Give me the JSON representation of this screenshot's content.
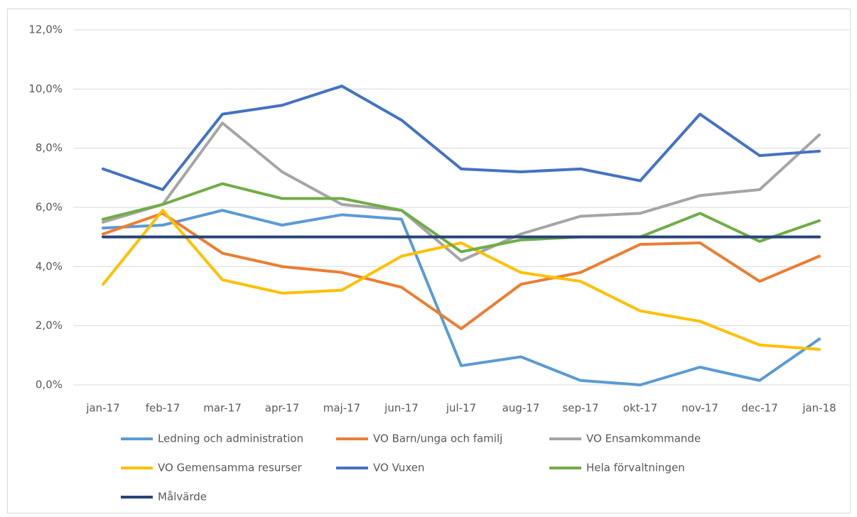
{
  "chart_data": {
    "type": "line",
    "categories": [
      "jan-17",
      "feb-17",
      "mar-17",
      "apr-17",
      "maj-17",
      "jun-17",
      "jul-17",
      "aug-17",
      "sep-17",
      "okt-17",
      "nov-17",
      "dec-17",
      "jan-18"
    ],
    "series": [
      {
        "name": "Ledning och administration",
        "color": "#5b9bd5",
        "values": [
          5.3,
          5.4,
          5.9,
          5.4,
          5.75,
          5.6,
          0.65,
          0.95,
          0.15,
          0.0,
          0.6,
          0.15,
          1.55
        ]
      },
      {
        "name": "VO Barn/unga och familj",
        "color": "#ed7d31",
        "values": [
          5.1,
          5.8,
          4.45,
          4.0,
          3.8,
          3.3,
          1.9,
          3.4,
          3.8,
          4.75,
          4.8,
          3.5,
          4.35
        ]
      },
      {
        "name": "VO Ensamkommande",
        "color": "#a5a5a5",
        "values": [
          5.5,
          6.1,
          8.85,
          7.2,
          6.1,
          5.9,
          4.2,
          5.1,
          5.7,
          5.8,
          6.4,
          6.6,
          8.45
        ]
      },
      {
        "name": "VO Gemensamma resurser",
        "color": "#ffc000",
        "values": [
          3.4,
          5.9,
          3.55,
          3.1,
          3.2,
          4.35,
          4.8,
          3.8,
          3.5,
          2.5,
          2.15,
          1.35,
          1.2
        ]
      },
      {
        "name": "VO Vuxen",
        "color": "#4472c4",
        "values": [
          7.3,
          6.6,
          9.15,
          9.45,
          10.1,
          8.95,
          7.3,
          7.2,
          7.3,
          6.9,
          9.15,
          7.75,
          7.9
        ]
      },
      {
        "name": "Hela förvaltningen",
        "color": "#70ad47",
        "values": [
          5.6,
          6.1,
          6.8,
          6.3,
          6.3,
          5.9,
          4.5,
          4.9,
          5.0,
          5.0,
          5.8,
          4.85,
          5.55
        ]
      },
      {
        "name": "Målvärde",
        "color": "#264478",
        "values": [
          5,
          5,
          5,
          5,
          5,
          5,
          5,
          5,
          5,
          5,
          5,
          5,
          5
        ]
      }
    ],
    "ylim": [
      0,
      12
    ],
    "yticks": [
      {
        "value": 0,
        "label": "0,0%"
      },
      {
        "value": 2,
        "label": "2,0%"
      },
      {
        "value": 4,
        "label": "4,0%"
      },
      {
        "value": 6,
        "label": "6,0%"
      },
      {
        "value": 8,
        "label": "8,0%"
      },
      {
        "value": 10,
        "label": "10,0%"
      },
      {
        "value": 12,
        "label": "12,0%"
      }
    ],
    "grid": true
  }
}
